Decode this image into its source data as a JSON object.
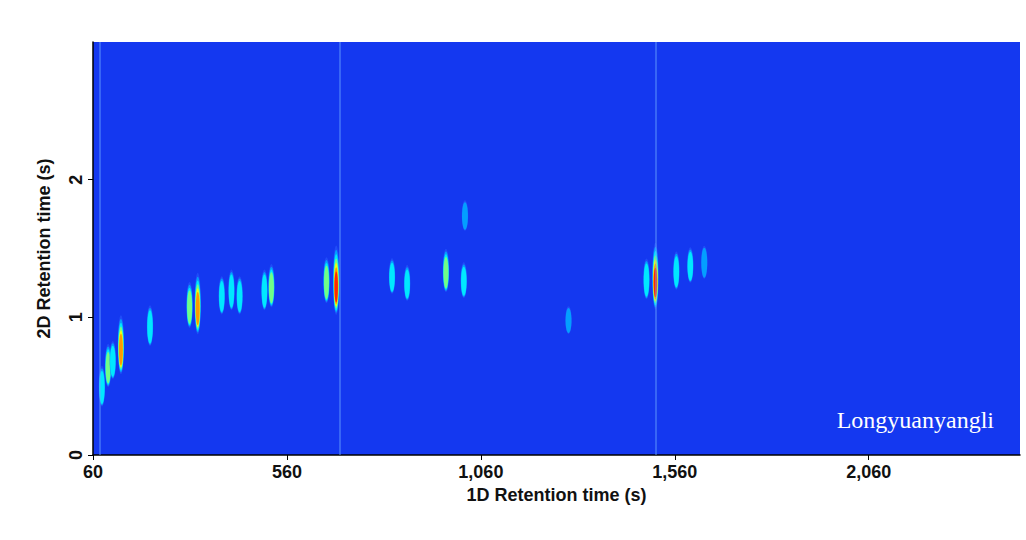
{
  "chart_data": {
    "type": "heatmap",
    "x_label": "1D Retention time (s)",
    "y_label": "2D Retention time (s)",
    "annotation": "Longyuanyangli",
    "xlim": [
      60,
      2450
    ],
    "xticks": [
      60,
      560,
      1060,
      1560,
      2060
    ],
    "ylim": [
      0,
      3
    ],
    "yticks": [
      0,
      1,
      2
    ],
    "grid": false,
    "zlim": [
      0,
      100
    ],
    "streaks": [
      78,
      695,
      1512
    ],
    "peaks": {
      "x": [
        83,
        99,
        111,
        132,
        207,
        309,
        330,
        392,
        417,
        438,
        502,
        520,
        662,
        687,
        831,
        870,
        970,
        1016,
        1019,
        1286,
        1487,
        1510,
        1564,
        1600,
        1636
      ],
      "y": [
        0.5,
        0.65,
        0.69,
        0.8,
        0.94,
        1.09,
        1.1,
        1.16,
        1.2,
        1.16,
        1.2,
        1.23,
        1.27,
        1.27,
        1.3,
        1.25,
        1.34,
        1.27,
        1.74,
        0.98,
        1.28,
        1.3,
        1.34,
        1.38,
        1.4
      ],
      "intensity": [
        40,
        45,
        35,
        75,
        40,
        50,
        80,
        35,
        40,
        35,
        40,
        45,
        50,
        95,
        30,
        30,
        45,
        30,
        20,
        15,
        40,
        90,
        35,
        30,
        25
      ]
    }
  }
}
